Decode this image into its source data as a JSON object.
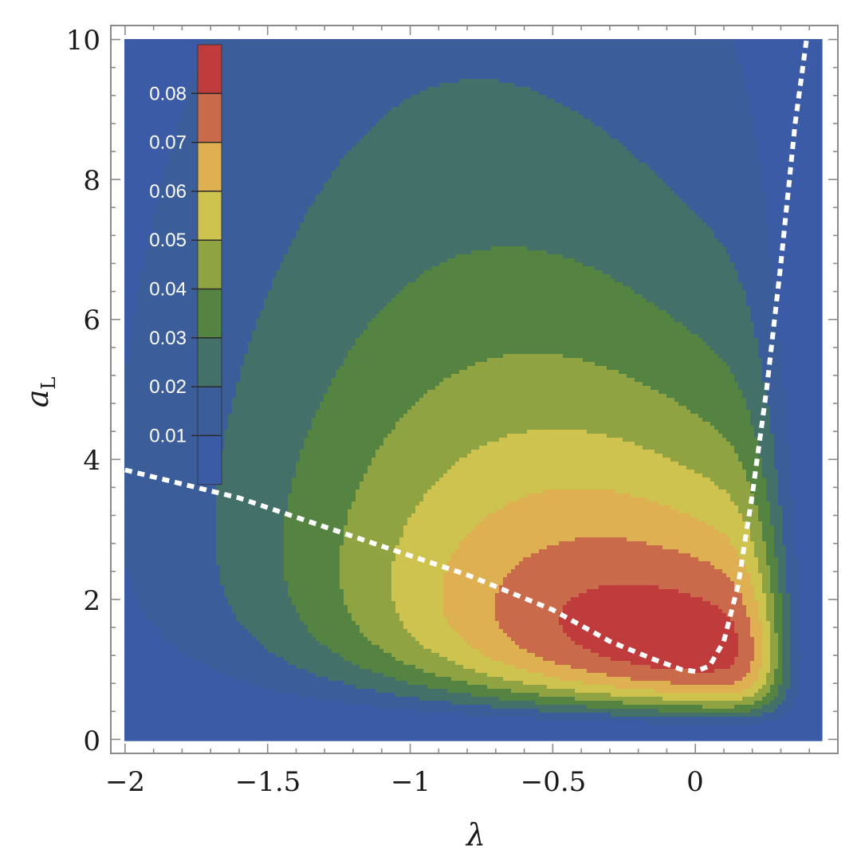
{
  "chart_data": {
    "type": "contour",
    "xlabel": "λ",
    "ylabel": "a",
    "ylabel_subscript": "L",
    "xlim": [
      -2.05,
      0.5
    ],
    "ylim": [
      -0.2,
      10.2
    ],
    "x_ticks": [
      -2,
      -1.5,
      -1,
      -0.5,
      0
    ],
    "x_tick_labels": [
      "−2",
      "−1.5",
      "−1",
      "−0.5",
      "0"
    ],
    "y_ticks": [
      0,
      2,
      4,
      6,
      8,
      10
    ],
    "y_tick_labels": [
      "0",
      "2",
      "4",
      "6",
      "8",
      "10"
    ],
    "grid": false,
    "legend_position": "top-left",
    "legend_levels": [
      {
        "label": "0.08",
        "value": 0.08
      },
      {
        "label": "0.07",
        "value": 0.07
      },
      {
        "label": "0.06",
        "value": 0.06
      },
      {
        "label": "0.05",
        "value": 0.05
      },
      {
        "label": "0.04",
        "value": 0.04
      },
      {
        "label": "0.03",
        "value": 0.03
      },
      {
        "label": "0.02",
        "value": 0.02
      },
      {
        "label": "0.01",
        "value": 0.01
      }
    ],
    "band_colors": [
      "#3c5ba6",
      "#3b5e9b",
      "#43716a",
      "#558442",
      "#8fa343",
      "#cec34f",
      "#dfb052",
      "#c96a4a",
      "#c03b3c"
    ],
    "peak": {
      "x": 0.0,
      "y": 1.6,
      "value": 0.085
    },
    "optimal_curve": {
      "style": "dotted",
      "color": "#ffffff",
      "points": [
        [
          -2.0,
          3.85
        ],
        [
          -1.6,
          3.45
        ],
        [
          -1.2,
          2.9
        ],
        [
          -0.8,
          2.35
        ],
        [
          -0.5,
          1.85
        ],
        [
          -0.3,
          1.4
        ],
        [
          -0.15,
          1.15
        ],
        [
          -0.05,
          1.0
        ],
        [
          0.0,
          0.97
        ],
        [
          0.05,
          1.05
        ],
        [
          0.1,
          1.4
        ],
        [
          0.15,
          2.2
        ],
        [
          0.2,
          3.5
        ],
        [
          0.25,
          5.0
        ],
        [
          0.3,
          6.8
        ],
        [
          0.35,
          8.8
        ],
        [
          0.39,
          10.0
        ]
      ]
    }
  }
}
